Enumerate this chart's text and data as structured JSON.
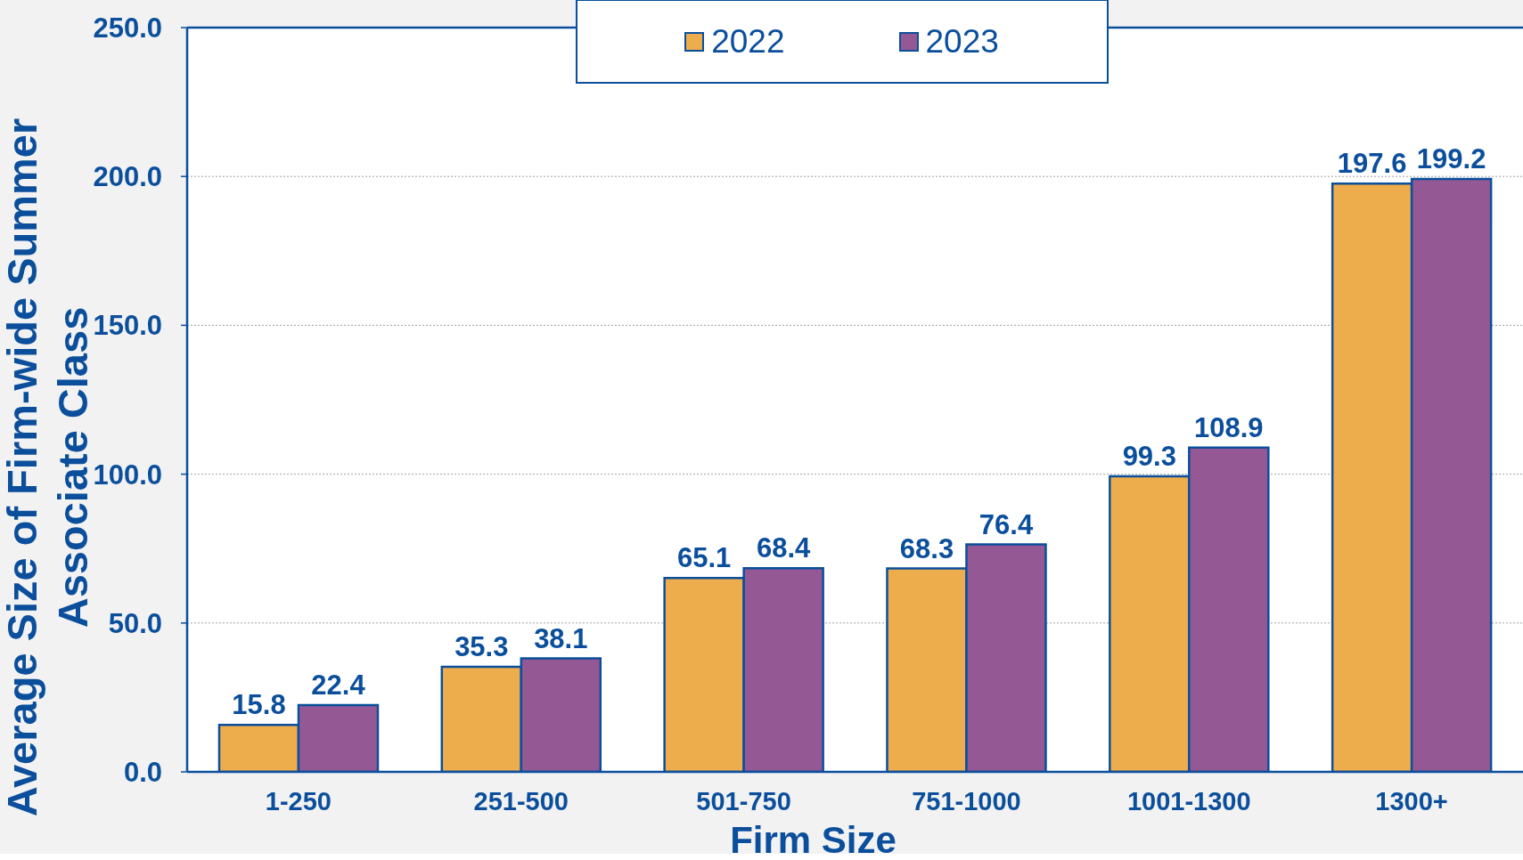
{
  "chart_data": {
    "type": "bar",
    "xlabel": "Firm Size",
    "ylabel": "Average Size of Firm-wide Summer Associate Class",
    "categories": [
      "1-250",
      "251-500",
      "501-750",
      "751-1000",
      "1001-1300",
      "1300+"
    ],
    "series": [
      {
        "name": "2022",
        "color": "#eead4d",
        "values": [
          15.8,
          35.3,
          65.1,
          68.3,
          99.3,
          197.6
        ]
      },
      {
        "name": "2023",
        "color": "#945994",
        "values": [
          22.4,
          38.1,
          68.4,
          76.4,
          108.9,
          199.2
        ]
      }
    ],
    "ylim": [
      0,
      250
    ],
    "yticks": [
      {
        "value": 0,
        "label": "0.0"
      },
      {
        "value": 50,
        "label": "50.0"
      },
      {
        "value": 100,
        "label": "100.0"
      },
      {
        "value": 150,
        "label": "150.0"
      },
      {
        "value": 200,
        "label": "200.0"
      },
      {
        "value": 250,
        "label": "250.0"
      }
    ],
    "grid": "y",
    "legend": "top",
    "data_labels": true
  }
}
